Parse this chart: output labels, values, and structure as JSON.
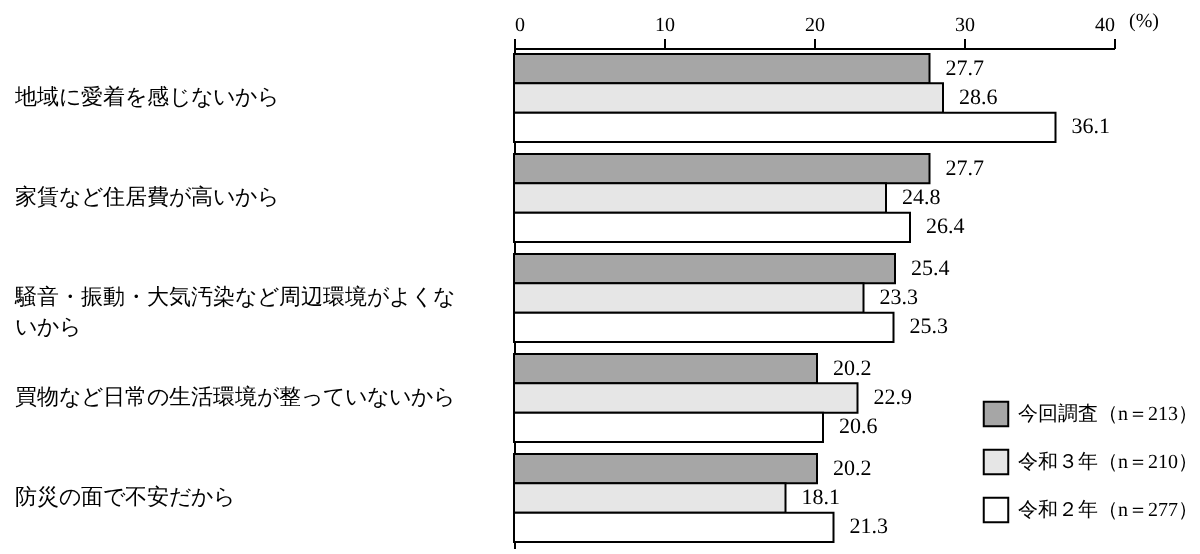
{
  "chart_data": {
    "type": "bar",
    "orientation": "horizontal",
    "xlabel": "(%)",
    "categories": [
      "地域に愛着を感じないから",
      "家賃など住居費が高いから",
      "騒音・振動・大気汚染など周辺環境がよくないから",
      "買物など日常の生活環境が整っていないから",
      "防災の面で不安だから"
    ],
    "series": [
      {
        "name": "今回調査（n＝213）",
        "color": "#a6a6a6",
        "values": [
          27.7,
          27.7,
          25.4,
          20.2,
          20.2
        ]
      },
      {
        "name": "令和３年（n＝210）",
        "color": "#e6e6e6",
        "values": [
          28.6,
          24.8,
          23.3,
          22.9,
          18.1
        ]
      },
      {
        "name": "令和２年（n＝277）",
        "color": "#ffffff",
        "values": [
          36.1,
          26.4,
          25.3,
          20.6,
          21.3
        ]
      }
    ],
    "xlim": [
      0,
      40
    ],
    "xticks": [
      0,
      10,
      20,
      30,
      40
    ],
    "data_labels": true,
    "legend": "bottom right",
    "grid": false
  }
}
